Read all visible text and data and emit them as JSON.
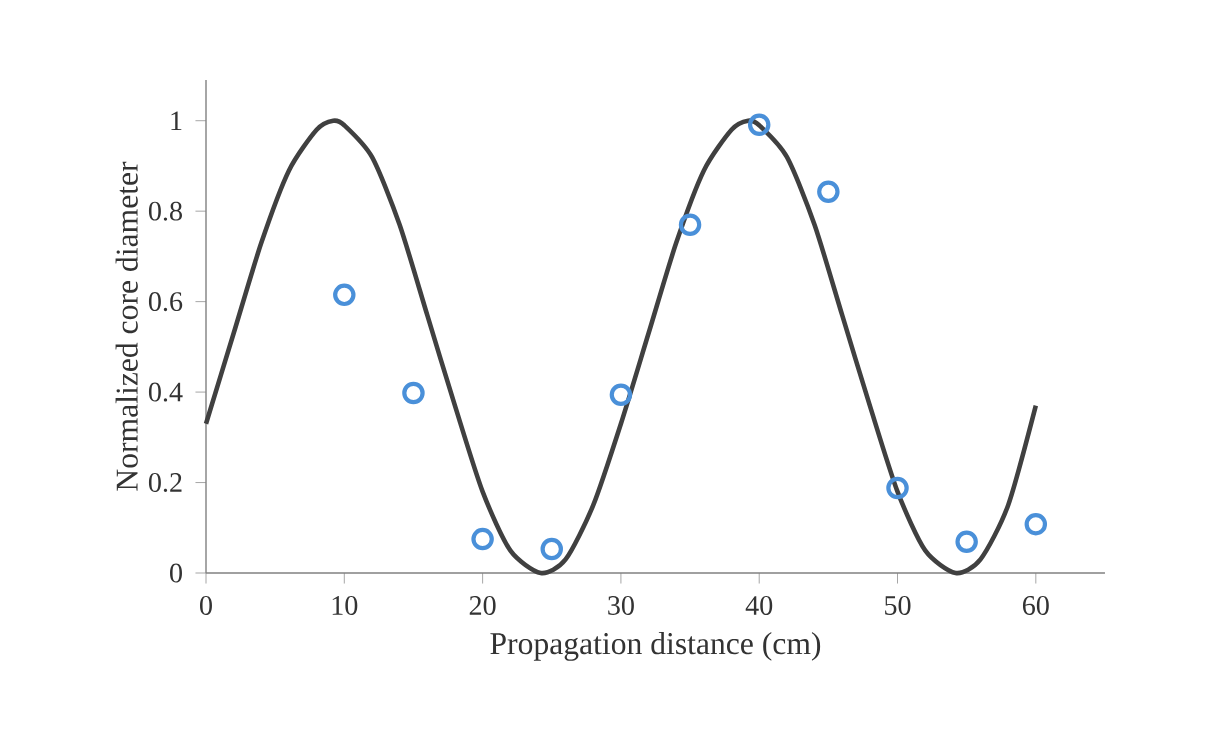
{
  "chart_data": {
    "type": "scatter",
    "xlabel": "Propagation distance (cm)",
    "ylabel": "Normalized core diameter",
    "xlim": [
      0,
      65
    ],
    "ylim": [
      0,
      1.09
    ],
    "xticks": [
      0,
      10,
      20,
      30,
      40,
      50,
      60
    ],
    "yticks": [
      0,
      0.2,
      0.4,
      0.6,
      0.8,
      1
    ],
    "grid": false,
    "series": [
      {
        "type": "line",
        "color": "#404040",
        "marker": "none",
        "line_style": "solid",
        "x": [
          0,
          2,
          4,
          6,
          8,
          9.2,
          10,
          12,
          14,
          16,
          18,
          20,
          22,
          24.2,
          26,
          28,
          30,
          32,
          34,
          36,
          38,
          39.2,
          40,
          42,
          44,
          46,
          48,
          50,
          52,
          54.2,
          56,
          58,
          60
        ],
        "values": [
          0.33,
          0.53,
          0.73,
          0.89,
          0.98,
          1,
          0.99,
          0.92,
          0.77,
          0.57,
          0.37,
          0.18,
          0.05,
          0,
          0.03,
          0.15,
          0.33,
          0.53,
          0.73,
          0.89,
          0.98,
          1,
          0.99,
          0.92,
          0.77,
          0.57,
          0.37,
          0.18,
          0.05,
          0,
          0.03,
          0.15,
          0.37
        ]
      },
      {
        "color": "#4a90d9",
        "marker": "circle",
        "x": [
          10,
          15,
          20,
          25,
          30,
          35,
          40,
          45,
          50,
          55,
          60
        ],
        "values": [
          0.615,
          0.398,
          0.075,
          0.053,
          0.394,
          0.77,
          0.991,
          0.843,
          0.188,
          0.069,
          0.108
        ]
      }
    ]
  }
}
